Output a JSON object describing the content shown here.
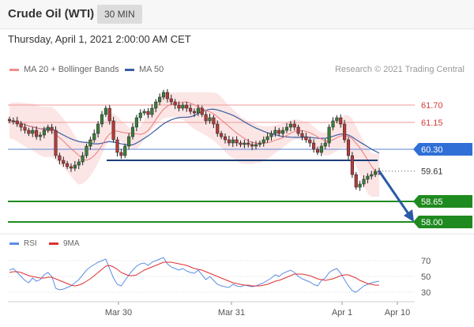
{
  "header": {
    "title": "Crude Oil (WTI)",
    "timeframe": "30 MIN"
  },
  "datetime": "Thursday, April 1, 2021 2:00:00 AM CET",
  "credit": "Research © 2021 Trading Central",
  "legend": {
    "ma20_label": "MA 20 + Bollinger Bands",
    "ma20_color": "#f28b8b",
    "ma50_label": "MA 50",
    "ma50_color": "#3a5fa0"
  },
  "chart_data": {
    "type": "candlestick",
    "price_axis_labels": [
      "61.70",
      "61.15",
      "60.30",
      "59.61",
      "58.65",
      "58.00"
    ],
    "levels": [
      {
        "value": 61.7,
        "label": "61.70",
        "kind": "resistance",
        "color": "#e05050"
      },
      {
        "value": 61.15,
        "label": "61.15",
        "kind": "resistance",
        "color": "#e05050"
      },
      {
        "value": 60.3,
        "label": "60.30",
        "kind": "pivot",
        "color": "#2f6fd6"
      },
      {
        "value": 59.61,
        "label": "59.61",
        "kind": "last_price",
        "color": "#333333"
      },
      {
        "value": 58.65,
        "label": "58.65",
        "kind": "support",
        "color": "#1f8a1f"
      },
      {
        "value": 58.0,
        "label": "58.00",
        "kind": "support",
        "color": "#1f8a1f"
      }
    ],
    "x_tick_labels": [
      "Mar 30",
      "Mar 31",
      "Apr 1",
      "Apr 10"
    ],
    "closes": [
      61.2,
      61.2,
      61.1,
      61.0,
      60.9,
      60.8,
      60.9,
      60.7,
      60.75,
      60.9,
      61.0,
      60.9,
      60.1,
      59.95,
      59.85,
      59.75,
      59.7,
      59.8,
      59.9,
      60.1,
      60.4,
      60.6,
      60.8,
      61.1,
      61.4,
      61.6,
      61.2,
      60.6,
      60.2,
      60.1,
      60.4,
      60.7,
      61.0,
      61.3,
      61.45,
      61.5,
      61.4,
      61.6,
      61.8,
      61.95,
      62.1,
      61.9,
      61.8,
      61.7,
      61.6,
      61.7,
      61.6,
      61.5,
      61.45,
      61.6,
      61.4,
      61.2,
      61.3,
      61.1,
      60.8,
      60.7,
      60.6,
      60.5,
      60.6,
      60.5,
      60.45,
      60.5,
      60.45,
      60.4,
      60.45,
      60.5,
      60.6,
      60.7,
      60.8,
      60.9,
      60.8,
      60.9,
      61.0,
      61.1,
      61.0,
      60.8,
      60.7,
      60.6,
      60.5,
      60.3,
      60.2,
      60.4,
      60.5,
      61.0,
      61.2,
      61.3,
      61.1,
      60.6,
      60.1,
      59.5,
      59.1,
      59.2,
      59.35,
      59.45,
      59.5,
      59.6,
      59.61
    ],
    "bollinger": {
      "upper_max": 62.1,
      "lower_min": 58.8
    },
    "forecast": {
      "from": 59.61,
      "to": 58.0,
      "direction": "down"
    },
    "rsi": {
      "label": "RSI",
      "color": "#5b8ee6",
      "ma_label": "9MA",
      "ma_color": "#e03030",
      "axis_labels": [
        "70",
        "50",
        "30"
      ],
      "values": [
        58,
        60,
        55,
        50,
        45,
        42,
        48,
        44,
        46,
        52,
        55,
        50,
        35,
        33,
        34,
        36,
        38,
        42,
        46,
        52,
        58,
        62,
        65,
        68,
        70,
        72,
        60,
        48,
        40,
        38,
        45,
        52,
        58,
        63,
        66,
        67,
        64,
        68,
        70,
        72,
        74,
        66,
        62,
        60,
        58,
        60,
        57,
        55,
        54,
        58,
        52,
        46,
        50,
        45,
        40,
        38,
        37,
        36,
        40,
        38,
        37,
        39,
        38,
        37,
        38,
        40,
        42,
        45,
        48,
        52,
        50,
        54,
        56,
        58,
        55,
        50,
        47,
        45,
        43,
        40,
        38,
        45,
        48,
        55,
        58,
        60,
        54,
        46,
        38,
        32,
        30,
        34,
        38,
        40,
        42,
        43,
        44
      ],
      "ma_values": [
        55,
        56,
        56,
        55,
        53,
        51,
        50,
        49,
        48,
        48,
        49,
        49,
        47,
        45,
        43,
        41,
        39,
        38,
        39,
        41,
        44,
        47,
        51,
        55,
        59,
        63,
        64,
        62,
        59,
        55,
        53,
        51,
        51,
        52,
        55,
        58,
        60,
        62,
        64,
        66,
        68,
        68,
        68,
        67,
        66,
        65,
        64,
        62,
        60,
        59,
        58,
        56,
        54,
        52,
        50,
        48,
        46,
        44,
        42,
        41,
        40,
        39,
        39,
        38,
        38,
        38,
        39,
        40,
        42,
        44,
        45,
        47,
        49,
        51,
        53,
        53,
        53,
        52,
        51,
        49,
        47,
        46,
        45,
        46,
        47,
        49,
        51,
        52,
        52,
        50,
        48,
        45,
        43,
        41,
        40,
        39,
        39
      ]
    }
  }
}
